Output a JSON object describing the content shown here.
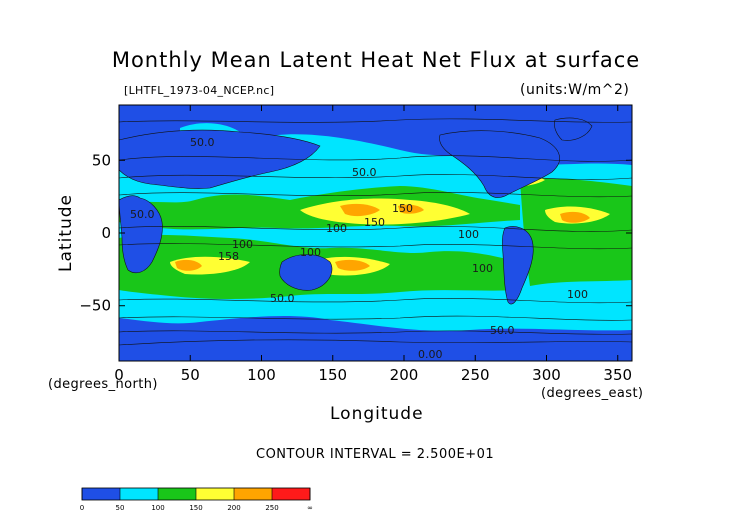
{
  "chart_data": {
    "type": "heatmap",
    "title": "Monthly Mean Latent Heat Net Flux at surface",
    "file_label": "[LHTFL_1973-04_NCEP.nc]",
    "units_label": "(units:W/m^2)",
    "xlabel": "Longitude",
    "ylabel": "Latitude",
    "x_units": "(degrees_east)",
    "y_units": "(degrees_north)",
    "contour_interval_text": "CONTOUR INTERVAL = 2.500E+01",
    "xlim": [
      0,
      360
    ],
    "ylim": [
      -88,
      88
    ],
    "x_ticks": [
      "0",
      "50",
      "100",
      "150",
      "200",
      "250",
      "300",
      "350"
    ],
    "x_tick_values": [
      0,
      50,
      100,
      150,
      200,
      250,
      300,
      350
    ],
    "y_ticks": [
      "50",
      "0",
      "−50"
    ],
    "y_tick_values": [
      50,
      0,
      -50
    ],
    "contour_labels": [
      "50.0",
      "50.0",
      "50.0",
      "100",
      "150",
      "150",
      "100",
      "100",
      "100",
      "158",
      "100",
      "50.0",
      "50.0",
      "100",
      "0.00"
    ],
    "colorbar": {
      "labels": [
        "0",
        "50",
        "100",
        "150",
        "200",
        "250",
        "∞"
      ],
      "bins": [
        {
          "from": 0,
          "to": 25,
          "color": "#1f4fe6"
        },
        {
          "from": 25,
          "to": 50,
          "color": "#1f4fe6"
        },
        {
          "from": 50,
          "to": 75,
          "color": "#00e5ff"
        },
        {
          "from": 75,
          "to": 100,
          "color": "#00e5ff"
        },
        {
          "from": 100,
          "to": 125,
          "color": "#19c619"
        },
        {
          "from": 125,
          "to": 150,
          "color": "#19c619"
        },
        {
          "from": 150,
          "to": 175,
          "color": "#ffff33"
        },
        {
          "from": 175,
          "to": 200,
          "color": "#ffff33"
        },
        {
          "from": 200,
          "to": 225,
          "color": "#ffa500"
        },
        {
          "from": 225,
          "to": 250,
          "color": "#ffa500"
        },
        {
          "from": 250,
          "to": 275,
          "color": "#ff1a1a"
        },
        {
          "from": 275,
          "to": 300,
          "color": "#ff1a1a"
        }
      ]
    },
    "level_colors": [
      "#1f4fe6",
      "#00e5ff",
      "#19c619",
      "#ffff33",
      "#ffa500",
      "#ff1a1a"
    ]
  }
}
